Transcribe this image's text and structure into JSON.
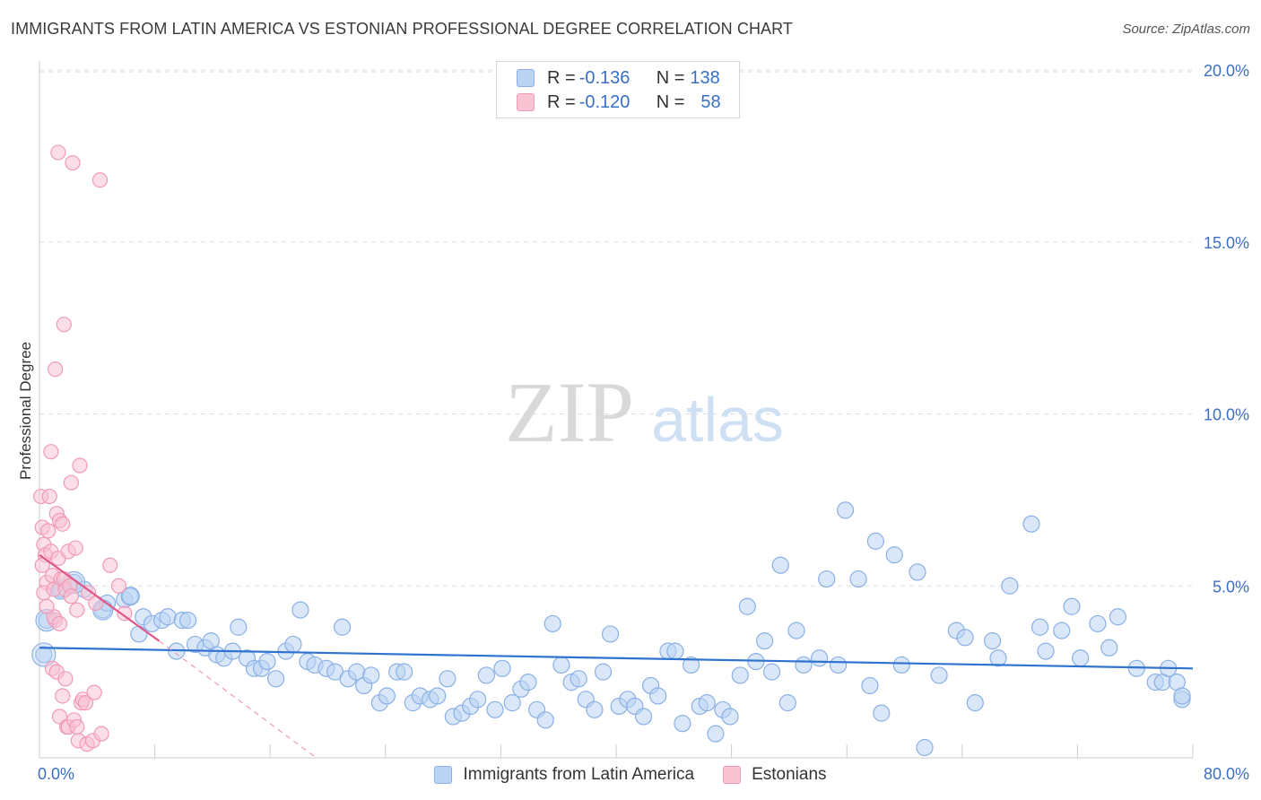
{
  "header": {
    "title": "IMMIGRANTS FROM LATIN AMERICA VS ESTONIAN PROFESSIONAL DEGREE CORRELATION CHART",
    "source": "Source: ZipAtlas.com"
  },
  "watermark": {
    "zip": "ZIP",
    "atlas": "atlas"
  },
  "legend_top": {
    "rows": [
      {
        "r_label": "R = ",
        "r_value": "-0.136",
        "n_label": "N = ",
        "n_value": "138"
      },
      {
        "r_label": "R = ",
        "r_value": "-0.120",
        "n_label": "N = ",
        "n_value": "58"
      }
    ]
  },
  "colors": {
    "blue_fill": "#b9d3f3",
    "blue_stroke": "#8ab0e6",
    "blue_line": "#2f73cf",
    "pink_fill": "#f8c3d3",
    "pink_stroke": "#f09ab6",
    "pink_line": "#e0558a",
    "grid": "#dddddd",
    "axis_label": "#3a6fc4"
  },
  "chart_data": {
    "type": "scatter",
    "title": "IMMIGRANTS FROM LATIN AMERICA VS ESTONIAN PROFESSIONAL DEGREE CORRELATION CHART",
    "xlabel": "",
    "ylabel": "Professional Degree",
    "xlim": [
      0,
      80
    ],
    "ylim": [
      0,
      20
    ],
    "x_tick_labels": [
      "0.0%",
      "80.0%"
    ],
    "y_ticks": [
      5,
      10,
      15,
      20
    ],
    "y_tick_labels": [
      "5.0%",
      "10.0%",
      "15.0%",
      "20.0%"
    ],
    "grid": true,
    "legend": "bottom",
    "series": [
      {
        "name": "Immigrants from Latin America",
        "R": -0.136,
        "N": 138,
        "trend": {
          "x0": 0,
          "y0": 3.2,
          "x1": 80,
          "y1": 2.6
        },
        "points": [
          [
            0.3,
            3.0
          ],
          [
            0.5,
            4.0
          ],
          [
            1.5,
            4.9
          ],
          [
            2.4,
            5.1
          ],
          [
            3.1,
            4.9
          ],
          [
            4.4,
            4.3
          ],
          [
            4.7,
            4.5
          ],
          [
            5.9,
            4.6
          ],
          [
            6.3,
            4.7
          ],
          [
            6.9,
            3.6
          ],
          [
            7.2,
            4.1
          ],
          [
            7.8,
            3.9
          ],
          [
            8.5,
            4.0
          ],
          [
            8.9,
            4.1
          ],
          [
            9.5,
            3.1
          ],
          [
            9.9,
            4.0
          ],
          [
            10.3,
            4.0
          ],
          [
            10.8,
            3.3
          ],
          [
            11.5,
            3.2
          ],
          [
            11.9,
            3.4
          ],
          [
            12.3,
            3.0
          ],
          [
            12.8,
            2.9
          ],
          [
            13.4,
            3.1
          ],
          [
            13.8,
            3.8
          ],
          [
            14.4,
            2.9
          ],
          [
            14.9,
            2.6
          ],
          [
            15.4,
            2.6
          ],
          [
            15.8,
            2.8
          ],
          [
            16.4,
            2.3
          ],
          [
            17.1,
            3.1
          ],
          [
            17.6,
            3.3
          ],
          [
            18.1,
            4.3
          ],
          [
            18.6,
            2.8
          ],
          [
            19.1,
            2.7
          ],
          [
            19.9,
            2.6
          ],
          [
            20.5,
            2.5
          ],
          [
            21.0,
            3.8
          ],
          [
            21.4,
            2.3
          ],
          [
            22.0,
            2.5
          ],
          [
            22.5,
            2.1
          ],
          [
            23.0,
            2.4
          ],
          [
            23.6,
            1.6
          ],
          [
            24.1,
            1.8
          ],
          [
            24.8,
            2.5
          ],
          [
            25.3,
            2.5
          ],
          [
            25.9,
            1.6
          ],
          [
            26.4,
            1.8
          ],
          [
            27.1,
            1.7
          ],
          [
            27.6,
            1.8
          ],
          [
            28.3,
            2.3
          ],
          [
            28.7,
            1.2
          ],
          [
            29.3,
            1.3
          ],
          [
            29.9,
            1.5
          ],
          [
            30.4,
            1.7
          ],
          [
            31.0,
            2.4
          ],
          [
            31.6,
            1.4
          ],
          [
            32.1,
            2.6
          ],
          [
            32.8,
            1.6
          ],
          [
            33.4,
            2.0
          ],
          [
            33.9,
            2.2
          ],
          [
            34.5,
            1.4
          ],
          [
            35.1,
            1.1
          ],
          [
            35.6,
            3.9
          ],
          [
            36.2,
            2.7
          ],
          [
            36.9,
            2.2
          ],
          [
            37.4,
            2.3
          ],
          [
            37.9,
            1.7
          ],
          [
            38.5,
            1.4
          ],
          [
            39.1,
            2.5
          ],
          [
            39.6,
            3.6
          ],
          [
            40.2,
            1.5
          ],
          [
            40.8,
            1.7
          ],
          [
            41.3,
            1.5
          ],
          [
            41.9,
            1.2
          ],
          [
            42.4,
            2.1
          ],
          [
            42.9,
            1.8
          ],
          [
            43.6,
            3.1
          ],
          [
            44.1,
            3.1
          ],
          [
            44.6,
            1.0
          ],
          [
            45.2,
            2.7
          ],
          [
            45.8,
            1.5
          ],
          [
            46.3,
            1.6
          ],
          [
            46.9,
            0.7
          ],
          [
            47.4,
            1.4
          ],
          [
            47.9,
            1.2
          ],
          [
            48.6,
            2.4
          ],
          [
            49.1,
            4.4
          ],
          [
            49.7,
            2.8
          ],
          [
            50.3,
            3.4
          ],
          [
            50.8,
            2.5
          ],
          [
            51.4,
            5.6
          ],
          [
            51.9,
            1.6
          ],
          [
            52.5,
            3.7
          ],
          [
            53.0,
            2.7
          ],
          [
            54.1,
            2.9
          ],
          [
            54.6,
            5.2
          ],
          [
            55.4,
            2.7
          ],
          [
            55.9,
            7.2
          ],
          [
            56.8,
            5.2
          ],
          [
            57.6,
            2.1
          ],
          [
            58.0,
            6.3
          ],
          [
            58.4,
            1.3
          ],
          [
            59.3,
            5.9
          ],
          [
            59.8,
            2.7
          ],
          [
            60.9,
            5.4
          ],
          [
            61.4,
            0.3
          ],
          [
            62.4,
            2.4
          ],
          [
            63.6,
            3.7
          ],
          [
            64.2,
            3.5
          ],
          [
            64.9,
            1.6
          ],
          [
            66.1,
            3.4
          ],
          [
            66.5,
            2.9
          ],
          [
            67.3,
            5.0
          ],
          [
            68.8,
            6.8
          ],
          [
            69.4,
            3.8
          ],
          [
            69.8,
            3.1
          ],
          [
            70.9,
            3.7
          ],
          [
            71.6,
            4.4
          ],
          [
            72.2,
            2.9
          ],
          [
            73.4,
            3.9
          ],
          [
            74.2,
            3.2
          ],
          [
            74.8,
            4.1
          ],
          [
            76.1,
            2.6
          ],
          [
            77.4,
            2.2
          ],
          [
            77.9,
            2.2
          ],
          [
            78.3,
            2.6
          ],
          [
            78.9,
            2.2
          ],
          [
            81.4,
            1.7
          ],
          [
            83.0,
            1.8
          ]
        ]
      },
      {
        "name": "Estonians",
        "R": -0.12,
        "N": 58,
        "trend": {
          "x0": 0,
          "y0": 5.9,
          "x1": 8.3,
          "y1": 3.4
        },
        "trend_ext": {
          "x0": 8.3,
          "y0": 3.4,
          "x1": 19.2,
          "y1": 0
        },
        "points": [
          [
            0.1,
            7.6
          ],
          [
            0.2,
            6.7
          ],
          [
            0.3,
            6.2
          ],
          [
            0.4,
            5.9
          ],
          [
            0.2,
            5.6
          ],
          [
            0.5,
            5.1
          ],
          [
            0.6,
            6.6
          ],
          [
            0.7,
            7.6
          ],
          [
            0.8,
            6.0
          ],
          [
            0.9,
            5.3
          ],
          [
            0.3,
            4.8
          ],
          [
            1.0,
            4.9
          ],
          [
            1.1,
            4.0
          ],
          [
            1.2,
            7.1
          ],
          [
            1.3,
            5.8
          ],
          [
            1.4,
            6.9
          ],
          [
            1.5,
            5.2
          ],
          [
            1.6,
            6.8
          ],
          [
            1.7,
            5.2
          ],
          [
            1.8,
            4.9
          ],
          [
            0.8,
            8.9
          ],
          [
            1.1,
            11.3
          ],
          [
            1.3,
            17.6
          ],
          [
            1.7,
            12.6
          ],
          [
            2.0,
            6.0
          ],
          [
            2.1,
            5.0
          ],
          [
            2.2,
            4.7
          ],
          [
            2.5,
            6.1
          ],
          [
            2.6,
            4.3
          ],
          [
            2.8,
            8.5
          ],
          [
            2.2,
            8.0
          ],
          [
            2.3,
            17.3
          ],
          [
            3.4,
            4.8
          ],
          [
            3.9,
            4.5
          ],
          [
            4.2,
            16.8
          ],
          [
            4.9,
            5.6
          ],
          [
            5.5,
            5.0
          ],
          [
            5.9,
            4.2
          ],
          [
            0.9,
            2.6
          ],
          [
            1.2,
            2.5
          ],
          [
            1.4,
            1.2
          ],
          [
            1.6,
            1.8
          ],
          [
            1.8,
            2.3
          ],
          [
            1.9,
            0.9
          ],
          [
            2.0,
            0.9
          ],
          [
            2.4,
            1.1
          ],
          [
            2.6,
            0.9
          ],
          [
            2.7,
            0.5
          ],
          [
            2.9,
            1.6
          ],
          [
            3.0,
            1.7
          ],
          [
            3.2,
            1.6
          ],
          [
            3.3,
            0.4
          ],
          [
            3.7,
            0.5
          ],
          [
            3.8,
            1.9
          ],
          [
            4.3,
            0.7
          ],
          [
            1.0,
            4.1
          ],
          [
            0.5,
            4.4
          ],
          [
            1.4,
            3.9
          ]
        ]
      }
    ]
  }
}
